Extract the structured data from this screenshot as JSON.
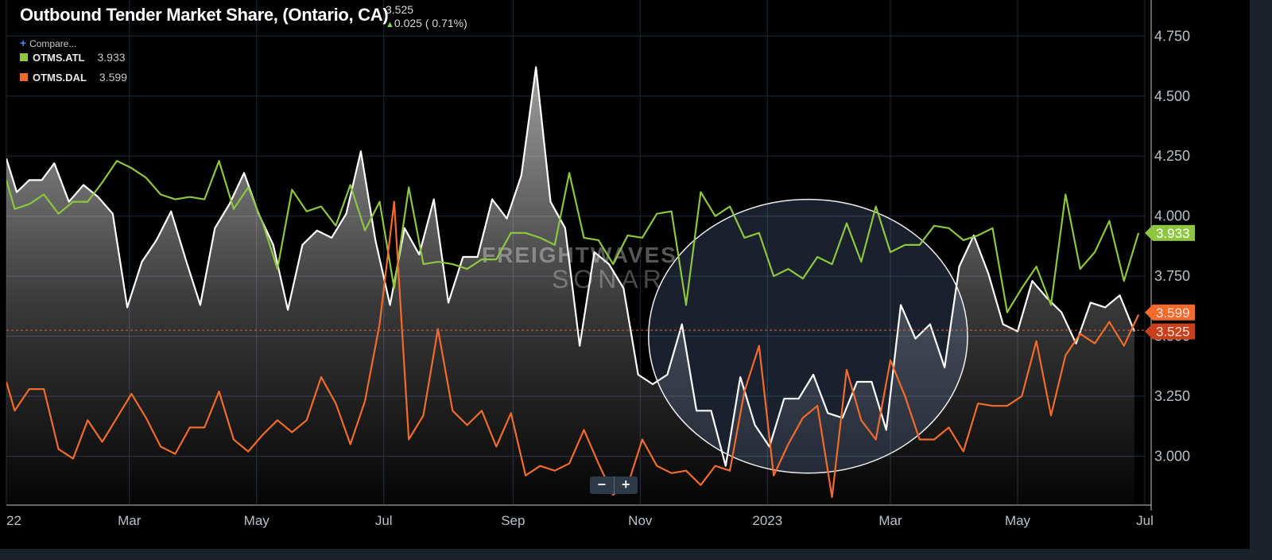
{
  "header": {
    "title": "Outbound Tender Market Share, (Ontario, CA)",
    "last_value": "3.525",
    "change": "0.025 ( 0.71%)",
    "compare_label": "Compare..."
  },
  "legend": [
    {
      "name": "OTMS.ATL",
      "value": "3.933",
      "color": "#8dc63f"
    },
    {
      "name": "OTMS.DAL",
      "value": "3.599",
      "color": "#f26b2d"
    }
  ],
  "watermark": {
    "line1": "FREIGHTWAVES",
    "line2": "SONAR"
  },
  "zoom": {
    "minus": "−",
    "plus": "+"
  },
  "chart_data": {
    "type": "line",
    "title": "Outbound Tender Market Share, (Ontario, CA)",
    "ylim": [
      2.8,
      4.9
    ],
    "yticks": [
      3.0,
      3.25,
      3.5,
      3.75,
      4.0,
      4.25,
      4.5,
      4.75
    ],
    "ytick_labels": [
      "3.000",
      "3.250",
      "3.500",
      "3.750",
      "4.000",
      "4.250",
      "4.500",
      "4.750"
    ],
    "xlim": [
      "2022-01-01",
      "2023-07-01"
    ],
    "xticks": [
      {
        "date": "2022-01-01",
        "label": "22"
      },
      {
        "date": "2022-03-01",
        "label": "Mar"
      },
      {
        "date": "2022-05-01",
        "label": "May"
      },
      {
        "date": "2022-07-01",
        "label": "Jul"
      },
      {
        "date": "2022-09-01",
        "label": "Sep"
      },
      {
        "date": "2022-11-01",
        "label": "Nov"
      },
      {
        "date": "2023-01-01",
        "label": "2023"
      },
      {
        "date": "2023-03-01",
        "label": "Mar"
      },
      {
        "date": "2023-05-01",
        "label": "May"
      },
      {
        "date": "2023-07-01",
        "label": "Jul"
      }
    ],
    "grid": true,
    "legend_position": "top-left",
    "reference_line": 3.525,
    "highlight_ellipse": {
      "x_range": [
        "2022-11-05",
        "2023-04-07"
      ],
      "y_range": [
        2.93,
        4.07
      ]
    },
    "series": [
      {
        "name": "Outbound Tender Market Share, (Ontario, CA)",
        "color": "#ffffff",
        "area": true,
        "last_tag": "3.525",
        "points": [
          [
            "2022-01-01",
            4.24
          ],
          [
            "2022-01-06",
            4.1
          ],
          [
            "2022-01-12",
            4.15
          ],
          [
            "2022-01-18",
            4.15
          ],
          [
            "2022-01-24",
            4.22
          ],
          [
            "2022-01-31",
            4.06
          ],
          [
            "2022-02-07",
            4.13
          ],
          [
            "2022-02-14",
            4.08
          ],
          [
            "2022-02-21",
            4.01
          ],
          [
            "2022-02-28",
            3.62
          ],
          [
            "2022-03-07",
            3.81
          ],
          [
            "2022-03-14",
            3.9
          ],
          [
            "2022-03-21",
            4.02
          ],
          [
            "2022-03-28",
            3.82
          ],
          [
            "2022-04-04",
            3.63
          ],
          [
            "2022-04-11",
            3.95
          ],
          [
            "2022-04-18",
            4.05
          ],
          [
            "2022-04-25",
            4.18
          ],
          [
            "2022-05-02",
            4.01
          ],
          [
            "2022-05-09",
            3.88
          ],
          [
            "2022-05-16",
            3.61
          ],
          [
            "2022-05-23",
            3.88
          ],
          [
            "2022-05-30",
            3.94
          ],
          [
            "2022-06-06",
            3.91
          ],
          [
            "2022-06-13",
            4.01
          ],
          [
            "2022-06-20",
            4.27
          ],
          [
            "2022-06-27",
            3.9
          ],
          [
            "2022-07-04",
            3.63
          ],
          [
            "2022-07-11",
            3.95
          ],
          [
            "2022-07-18",
            3.84
          ],
          [
            "2022-07-25",
            4.07
          ],
          [
            "2022-08-01",
            3.64
          ],
          [
            "2022-08-08",
            3.83
          ],
          [
            "2022-08-15",
            3.83
          ],
          [
            "2022-08-22",
            4.07
          ],
          [
            "2022-08-29",
            3.99
          ],
          [
            "2022-09-05",
            4.17
          ],
          [
            "2022-09-12",
            4.62
          ],
          [
            "2022-09-19",
            4.06
          ],
          [
            "2022-09-26",
            3.95
          ],
          [
            "2022-10-03",
            3.46
          ],
          [
            "2022-10-10",
            3.85
          ],
          [
            "2022-10-17",
            3.8
          ],
          [
            "2022-10-24",
            3.7
          ],
          [
            "2022-10-31",
            3.34
          ],
          [
            "2022-11-07",
            3.3
          ],
          [
            "2022-11-14",
            3.34
          ],
          [
            "2022-11-21",
            3.55
          ],
          [
            "2022-11-28",
            3.19
          ],
          [
            "2022-12-05",
            3.19
          ],
          [
            "2022-12-12",
            2.96
          ],
          [
            "2022-12-19",
            3.33
          ],
          [
            "2022-12-26",
            3.13
          ],
          [
            "2023-01-02",
            3.04
          ],
          [
            "2023-01-09",
            3.24
          ],
          [
            "2023-01-16",
            3.24
          ],
          [
            "2023-01-23",
            3.34
          ],
          [
            "2023-01-30",
            3.18
          ],
          [
            "2023-02-06",
            3.16
          ],
          [
            "2023-02-13",
            3.31
          ],
          [
            "2023-02-20",
            3.31
          ],
          [
            "2023-02-27",
            3.11
          ],
          [
            "2023-03-06",
            3.63
          ],
          [
            "2023-03-13",
            3.49
          ],
          [
            "2023-03-20",
            3.55
          ],
          [
            "2023-03-27",
            3.37
          ],
          [
            "2023-04-03",
            3.79
          ],
          [
            "2023-04-10",
            3.92
          ],
          [
            "2023-04-17",
            3.76
          ],
          [
            "2023-04-24",
            3.55
          ],
          [
            "2023-05-01",
            3.52
          ],
          [
            "2023-05-08",
            3.73
          ],
          [
            "2023-05-15",
            3.66
          ],
          [
            "2023-05-22",
            3.6
          ],
          [
            "2023-05-29",
            3.47
          ],
          [
            "2023-06-05",
            3.64
          ],
          [
            "2023-06-12",
            3.62
          ],
          [
            "2023-06-19",
            3.67
          ],
          [
            "2023-06-26",
            3.52
          ]
        ]
      },
      {
        "name": "OTMS.ATL",
        "color": "#8dc63f",
        "area": false,
        "last_tag": "3.933",
        "points": [
          [
            "2022-01-01",
            4.15
          ],
          [
            "2022-01-05",
            4.03
          ],
          [
            "2022-01-12",
            4.05
          ],
          [
            "2022-01-19",
            4.09
          ],
          [
            "2022-01-26",
            4.01
          ],
          [
            "2022-02-02",
            4.06
          ],
          [
            "2022-02-09",
            4.06
          ],
          [
            "2022-02-16",
            4.14
          ],
          [
            "2022-02-23",
            4.23
          ],
          [
            "2022-03-02",
            4.2
          ],
          [
            "2022-03-09",
            4.16
          ],
          [
            "2022-03-16",
            4.09
          ],
          [
            "2022-03-23",
            4.07
          ],
          [
            "2022-03-30",
            4.08
          ],
          [
            "2022-04-06",
            4.07
          ],
          [
            "2022-04-13",
            4.23
          ],
          [
            "2022-04-20",
            4.03
          ],
          [
            "2022-04-27",
            4.12
          ],
          [
            "2022-05-04",
            3.97
          ],
          [
            "2022-05-11",
            3.78
          ],
          [
            "2022-05-18",
            4.11
          ],
          [
            "2022-05-25",
            4.02
          ],
          [
            "2022-06-01",
            4.04
          ],
          [
            "2022-06-08",
            3.96
          ],
          [
            "2022-06-15",
            4.13
          ],
          [
            "2022-06-22",
            3.94
          ],
          [
            "2022-06-29",
            4.06
          ],
          [
            "2022-07-06",
            3.7
          ],
          [
            "2022-07-13",
            4.12
          ],
          [
            "2022-07-20",
            3.8
          ],
          [
            "2022-07-27",
            3.81
          ],
          [
            "2022-08-03",
            3.8
          ],
          [
            "2022-08-10",
            3.78
          ],
          [
            "2022-08-17",
            3.82
          ],
          [
            "2022-08-24",
            3.82
          ],
          [
            "2022-08-31",
            3.93
          ],
          [
            "2022-09-07",
            3.93
          ],
          [
            "2022-09-14",
            3.91
          ],
          [
            "2022-09-21",
            3.88
          ],
          [
            "2022-09-28",
            4.18
          ],
          [
            "2022-10-05",
            3.91
          ],
          [
            "2022-10-12",
            3.9
          ],
          [
            "2022-10-19",
            3.8
          ],
          [
            "2022-10-26",
            3.92
          ],
          [
            "2022-11-02",
            3.91
          ],
          [
            "2022-11-09",
            4.01
          ],
          [
            "2022-11-16",
            4.02
          ],
          [
            "2022-11-23",
            3.63
          ],
          [
            "2022-11-30",
            4.1
          ],
          [
            "2022-12-07",
            4.0
          ],
          [
            "2022-12-14",
            4.04
          ],
          [
            "2022-12-21",
            3.91
          ],
          [
            "2022-12-28",
            3.93
          ],
          [
            "2023-01-04",
            3.75
          ],
          [
            "2023-01-11",
            3.78
          ],
          [
            "2023-01-18",
            3.74
          ],
          [
            "2023-01-25",
            3.83
          ],
          [
            "2023-02-01",
            3.8
          ],
          [
            "2023-02-08",
            3.97
          ],
          [
            "2023-02-15",
            3.81
          ],
          [
            "2023-02-22",
            4.04
          ],
          [
            "2023-03-01",
            3.85
          ],
          [
            "2023-03-08",
            3.88
          ],
          [
            "2023-03-15",
            3.88
          ],
          [
            "2023-03-22",
            3.96
          ],
          [
            "2023-03-29",
            3.95
          ],
          [
            "2023-04-05",
            3.9
          ],
          [
            "2023-04-12",
            3.92
          ],
          [
            "2023-04-19",
            3.95
          ],
          [
            "2023-04-26",
            3.6
          ],
          [
            "2023-05-03",
            3.7
          ],
          [
            "2023-05-10",
            3.79
          ],
          [
            "2023-05-17",
            3.63
          ],
          [
            "2023-05-24",
            4.09
          ],
          [
            "2023-05-31",
            3.78
          ],
          [
            "2023-06-07",
            3.85
          ],
          [
            "2023-06-14",
            3.98
          ],
          [
            "2023-06-21",
            3.73
          ],
          [
            "2023-06-28",
            3.93
          ]
        ]
      },
      {
        "name": "OTMS.DAL",
        "color": "#f26b2d",
        "area": false,
        "last_tag": "3.599",
        "points": [
          [
            "2022-01-01",
            3.31
          ],
          [
            "2022-01-05",
            3.19
          ],
          [
            "2022-01-12",
            3.28
          ],
          [
            "2022-01-19",
            3.28
          ],
          [
            "2022-01-26",
            3.03
          ],
          [
            "2022-02-02",
            2.99
          ],
          [
            "2022-02-09",
            3.15
          ],
          [
            "2022-02-16",
            3.06
          ],
          [
            "2022-02-23",
            3.16
          ],
          [
            "2022-03-02",
            3.26
          ],
          [
            "2022-03-09",
            3.16
          ],
          [
            "2022-03-16",
            3.04
          ],
          [
            "2022-03-23",
            3.01
          ],
          [
            "2022-03-30",
            3.12
          ],
          [
            "2022-04-06",
            3.12
          ],
          [
            "2022-04-13",
            3.27
          ],
          [
            "2022-04-20",
            3.07
          ],
          [
            "2022-04-27",
            3.02
          ],
          [
            "2022-05-04",
            3.09
          ],
          [
            "2022-05-11",
            3.15
          ],
          [
            "2022-05-18",
            3.1
          ],
          [
            "2022-05-25",
            3.15
          ],
          [
            "2022-06-01",
            3.33
          ],
          [
            "2022-06-08",
            3.22
          ],
          [
            "2022-06-15",
            3.05
          ],
          [
            "2022-06-22",
            3.23
          ],
          [
            "2022-06-29",
            3.55
          ],
          [
            "2022-07-06",
            4.06
          ],
          [
            "2022-07-13",
            3.07
          ],
          [
            "2022-07-20",
            3.17
          ],
          [
            "2022-07-27",
            3.53
          ],
          [
            "2022-08-03",
            3.19
          ],
          [
            "2022-08-10",
            3.13
          ],
          [
            "2022-08-17",
            3.19
          ],
          [
            "2022-08-24",
            3.04
          ],
          [
            "2022-08-31",
            3.18
          ],
          [
            "2022-09-07",
            2.92
          ],
          [
            "2022-09-14",
            2.96
          ],
          [
            "2022-09-21",
            2.94
          ],
          [
            "2022-09-28",
            2.97
          ],
          [
            "2022-10-05",
            3.11
          ],
          [
            "2022-10-12",
            2.97
          ],
          [
            "2022-10-19",
            2.84
          ],
          [
            "2022-10-26",
            2.88
          ],
          [
            "2022-11-02",
            3.07
          ],
          [
            "2022-11-09",
            2.96
          ],
          [
            "2022-11-16",
            2.93
          ],
          [
            "2022-11-23",
            2.94
          ],
          [
            "2022-11-30",
            2.88
          ],
          [
            "2022-12-07",
            2.96
          ],
          [
            "2022-12-14",
            2.94
          ],
          [
            "2022-12-21",
            3.27
          ],
          [
            "2022-12-28",
            3.46
          ],
          [
            "2023-01-04",
            2.92
          ],
          [
            "2023-01-11",
            3.05
          ],
          [
            "2023-01-18",
            3.16
          ],
          [
            "2023-01-25",
            3.21
          ],
          [
            "2023-02-01",
            2.83
          ],
          [
            "2023-02-08",
            3.36
          ],
          [
            "2023-02-15",
            3.15
          ],
          [
            "2023-02-22",
            3.07
          ],
          [
            "2023-03-01",
            3.4
          ],
          [
            "2023-03-08",
            3.25
          ],
          [
            "2023-03-15",
            3.07
          ],
          [
            "2023-03-22",
            3.07
          ],
          [
            "2023-03-29",
            3.12
          ],
          [
            "2023-04-05",
            3.02
          ],
          [
            "2023-04-12",
            3.22
          ],
          [
            "2023-04-19",
            3.21
          ],
          [
            "2023-04-26",
            3.21
          ],
          [
            "2023-05-03",
            3.25
          ],
          [
            "2023-05-10",
            3.48
          ],
          [
            "2023-05-17",
            3.17
          ],
          [
            "2023-05-24",
            3.42
          ],
          [
            "2023-05-31",
            3.51
          ],
          [
            "2023-06-07",
            3.47
          ],
          [
            "2023-06-14",
            3.56
          ],
          [
            "2023-06-21",
            3.46
          ],
          [
            "2023-06-28",
            3.59
          ]
        ]
      }
    ]
  }
}
